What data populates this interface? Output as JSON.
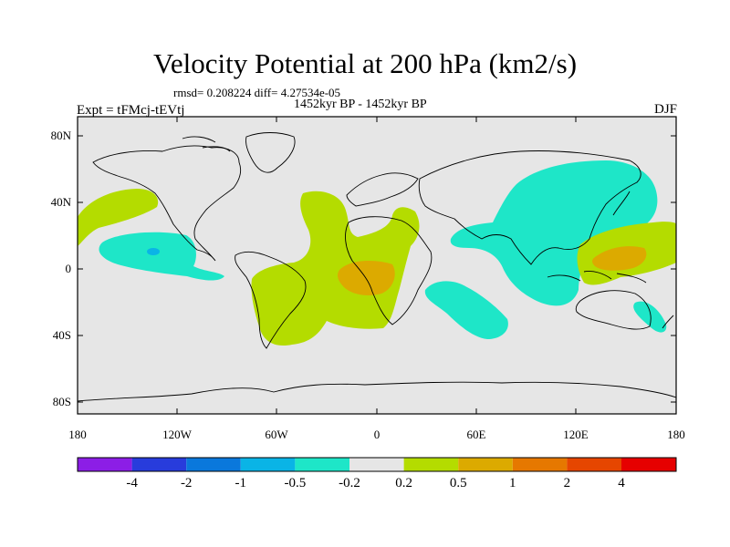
{
  "title": "Velocity Potential at 200 hPa (km2/s)",
  "stats": "rmsd= 0.208224  diff= 4.27534e-05",
  "period": "1452kyr BP - 1452kyr BP",
  "experiment": "Expt = tFMcj-tEVtj",
  "season": "DJF",
  "map": {
    "y_ticks": [
      "80N",
      "40N",
      "0",
      "40S",
      "80S"
    ],
    "x_ticks": [
      "180",
      "120W",
      "60W",
      "0",
      "60E",
      "120E",
      "180"
    ],
    "background_color": "#e6e6e6",
    "field_regions": [
      {
        "name": "north-pacific-positive",
        "level": "0.2 to 0.5",
        "color": "#b4dc00"
      },
      {
        "name": "east-pacific-negative",
        "level": "-0.5 to -0.2",
        "color": "#1ee6c8"
      },
      {
        "name": "east-pacific-core",
        "level": "-1 to -0.5",
        "color": "#0ab4e6"
      },
      {
        "name": "atlantic-south-america-positive",
        "level": "0.2 to 0.5",
        "color": "#b4dc00"
      },
      {
        "name": "atlantic-core",
        "level": "0.5 to 1",
        "color": "#dcaa00"
      },
      {
        "name": "indian-ocean-negative",
        "level": "-0.5 to -0.2",
        "color": "#1ee6c8"
      },
      {
        "name": "asia-west-pacific-negative",
        "level": "-0.5 to -0.2",
        "color": "#1ee6c8"
      },
      {
        "name": "west-pacific-positive",
        "level": "0.2 to 0.5",
        "color": "#b4dc00"
      },
      {
        "name": "west-pacific-core",
        "level": "0.5 to 1",
        "color": "#dcaa00"
      },
      {
        "name": "southwest-pacific-negative",
        "level": "-0.5 to -0.2",
        "color": "#1ee6c8"
      }
    ]
  },
  "colorbar": {
    "labels": [
      "-4",
      "-2",
      "-1",
      "-0.5",
      "-0.2",
      "0.2",
      "0.5",
      "1",
      "2",
      "4"
    ],
    "colors": [
      "#8c1ee6",
      "#283cdc",
      "#0a78dc",
      "#0ab4e6",
      "#1ee6c8",
      "#e6e6e6",
      "#b4dc00",
      "#dcaa00",
      "#e67800",
      "#e64600",
      "#e60000"
    ]
  }
}
